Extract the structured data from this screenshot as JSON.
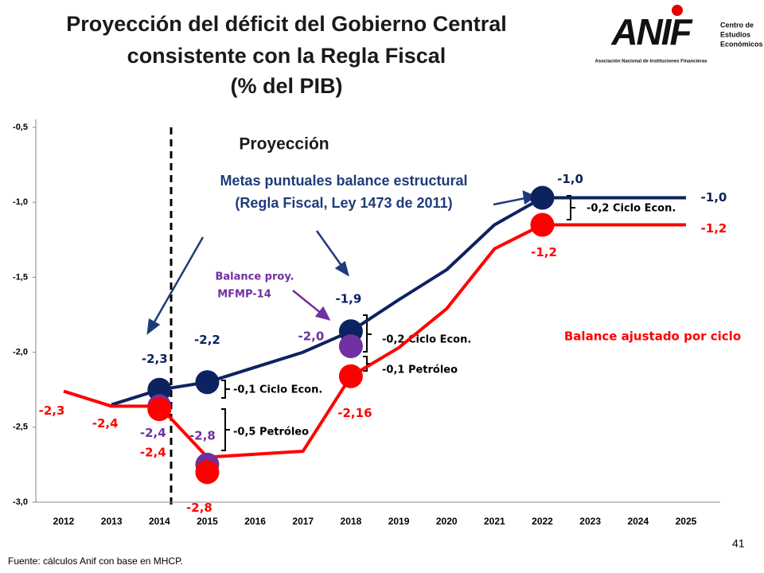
{
  "header": {
    "title": [
      "Proyección del déficit del Gobierno Central",
      "consistente con la Regla Fiscal",
      "(% del PIB)"
    ],
    "page_number": "41"
  },
  "logo": {
    "name": "ANIF",
    "tagline": "Asociación Nacional de Instituciones Financieras",
    "unit": [
      "Centro de",
      "Estudios",
      "Económicos"
    ]
  },
  "chart_data": {
    "type": "line",
    "categories": [
      "2012",
      "2013",
      "2014",
      "2015",
      "2016",
      "2017",
      "2018",
      "2019",
      "2020",
      "2021",
      "2022",
      "2023",
      "2024",
      "2025"
    ],
    "ylim": [
      -3,
      -0.5
    ],
    "yticks": [
      {
        "value": -3,
        "label": "-3,0"
      },
      {
        "value": -2.5,
        "label": "-2,5"
      },
      {
        "value": -2,
        "label": "-2,0"
      },
      {
        "value": -1.5,
        "label": "-1,5"
      },
      {
        "value": -1,
        "label": "-1,0"
      },
      {
        "value": -0.5,
        "label": "-0,5"
      }
    ],
    "grid": false,
    "series": [
      {
        "mode": "lines",
        "color": "#0d2260",
        "values": [
          null,
          -2.35,
          -2.25,
          -2.2,
          -2.1,
          -2.0,
          -1.86,
          -1.65,
          -1.45,
          -1.15,
          -0.97,
          -0.97,
          -0.97,
          -0.97
        ],
        "value_labels": [
          null,
          null,
          null,
          null,
          null,
          null,
          null,
          null,
          null,
          null,
          null,
          null,
          null,
          "-1,0"
        ]
      },
      {
        "mode": "lines",
        "color": "#ff0000",
        "values": [
          -2.26,
          -2.36,
          -2.36,
          -2.7,
          -2.68,
          -2.66,
          -2.16,
          -1.97,
          -1.71,
          -1.31,
          -1.15,
          -1.15,
          -1.15,
          -1.15
        ],
        "value_labels": [
          "-2,3",
          "-2,4",
          null,
          null,
          null,
          null,
          null,
          null,
          null,
          null,
          null,
          null,
          null,
          "-1,2"
        ]
      },
      {
        "mode": "markers",
        "color": "#0d2260",
        "values": [
          null,
          null,
          -2.25,
          -2.2,
          null,
          null,
          -1.86,
          null,
          null,
          null,
          -0.97,
          null,
          null,
          null
        ],
        "value_labels": [
          null,
          null,
          "-2,3",
          "-2,2",
          null,
          null,
          "-1,9",
          null,
          null,
          null,
          "-1,0",
          null,
          null,
          null
        ]
      },
      {
        "mode": "markers",
        "color": "#7030a0",
        "values": [
          null,
          null,
          -2.36,
          -2.75,
          null,
          null,
          -1.96,
          null,
          null,
          null,
          null,
          null,
          null,
          null
        ],
        "value_labels": [
          null,
          null,
          "-2,4",
          "-2,8",
          null,
          null,
          "-2,0",
          null,
          null,
          null,
          null,
          null,
          null,
          null
        ]
      },
      {
        "mode": "markers",
        "color": "#ff0000",
        "values": [
          null,
          null,
          -2.38,
          -2.8,
          null,
          null,
          -2.16,
          null,
          null,
          null,
          -1.15,
          null,
          null,
          null
        ],
        "value_labels": [
          null,
          null,
          "-2,4",
          "-2,8",
          null,
          null,
          "-2,16",
          null,
          null,
          null,
          "-1,2",
          null,
          null,
          null
        ]
      }
    ],
    "annotations": [
      "Proyección",
      "Metas puntuales balance estructural",
      "(Regla Fiscal, Ley 1473 de 2011)",
      "Balance proy.",
      "MFMP-14",
      "Balance ajustado por ciclo",
      "-0,1 Ciclo Econ.",
      "-0,5 Petróleo",
      "-0,2 Ciclo Econ.",
      "-0,1 Petróleo",
      "-0,2 Ciclo Econ."
    ]
  },
  "footer": {
    "source": "Fuente: cálculos Anif con base en MHCP."
  }
}
